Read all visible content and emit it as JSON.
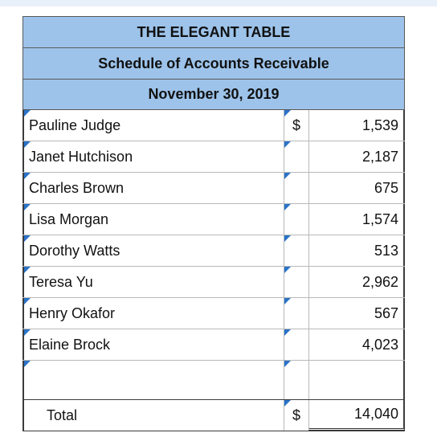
{
  "header": {
    "company": "THE ELEGANT TABLE",
    "title": "Schedule of Accounts Receivable",
    "date": "November 30, 2019"
  },
  "rows": [
    {
      "name": "Pauline Judge",
      "currency": "$",
      "amount": "1,539"
    },
    {
      "name": "Janet Hutchison",
      "currency": "",
      "amount": "2,187"
    },
    {
      "name": "Charles Brown",
      "currency": "",
      "amount": "675"
    },
    {
      "name": "Lisa Morgan",
      "currency": "",
      "amount": "1,574"
    },
    {
      "name": "Dorothy Watts",
      "currency": "",
      "amount": "513"
    },
    {
      "name": "Teresa Yu",
      "currency": "",
      "amount": "2,962"
    },
    {
      "name": "Henry Okafor",
      "currency": "",
      "amount": "567"
    },
    {
      "name": "Elaine Brock",
      "currency": "",
      "amount": "4,023"
    },
    {
      "name": "",
      "currency": "",
      "amount": ""
    }
  ],
  "total": {
    "label": "Total",
    "currency": "$",
    "amount": "14,040"
  },
  "colors": {
    "header_bg": "#9dc3ea",
    "input_marker": "#2a73c8"
  },
  "icons": {
    "input_marker": "blue-triangle-marker"
  }
}
